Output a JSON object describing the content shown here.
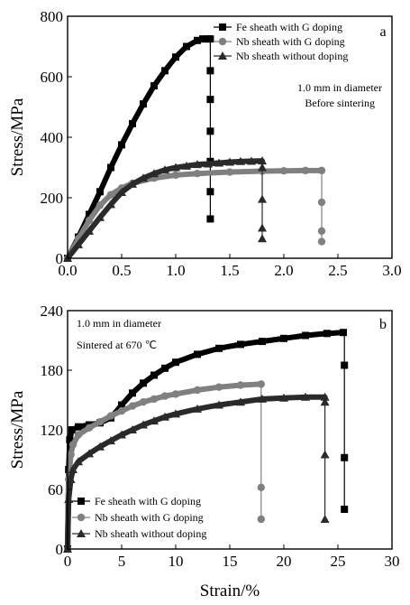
{
  "colors": {
    "Fe sheath with G doping": "#000000",
    "Nb sheath with G doping": "#808080",
    "Nb sheath without doping": "#2a2a2a"
  },
  "chart_data": [
    {
      "type": "line",
      "panel": "a",
      "xlabel": "",
      "ylabel": "Stress/MPa",
      "xlim": [
        0,
        3.0
      ],
      "ylim": [
        0,
        800
      ],
      "xticks": [
        "0.0",
        "0.5",
        "1.0",
        "1.5",
        "2.0",
        "2.5",
        "3.0"
      ],
      "yticks": [
        "0",
        "200",
        "400",
        "600",
        "800"
      ],
      "annotations": [
        "1.0 mm in diameter",
        "Before sintering"
      ],
      "legend_position": "top-right",
      "series": [
        {
          "name": "Fe sheath with G doping",
          "marker": "square",
          "color": "#000000",
          "points": [
            [
              0,
              0
            ],
            [
              0.1,
              70
            ],
            [
              0.2,
              145
            ],
            [
              0.3,
              220
            ],
            [
              0.4,
              300
            ],
            [
              0.5,
              375
            ],
            [
              0.6,
              445
            ],
            [
              0.7,
              510
            ],
            [
              0.8,
              570
            ],
            [
              0.9,
              620
            ],
            [
              1.0,
              665
            ],
            [
              1.1,
              700
            ],
            [
              1.2,
              720
            ],
            [
              1.25,
              725
            ],
            [
              1.3,
              725
            ],
            [
              1.32,
              725
            ]
          ],
          "drop_x": 1.32,
          "drop_points": [
            620,
            525,
            420,
            320,
            220,
            130
          ]
        },
        {
          "name": "Nb sheath with G doping",
          "marker": "circle",
          "color": "#808080",
          "points": [
            [
              0,
              0
            ],
            [
              0.1,
              65
            ],
            [
              0.2,
              125
            ],
            [
              0.3,
              175
            ],
            [
              0.4,
              210
            ],
            [
              0.5,
              232
            ],
            [
              0.6,
              248
            ],
            [
              0.8,
              265
            ],
            [
              1.0,
              275
            ],
            [
              1.2,
              280
            ],
            [
              1.5,
              285
            ],
            [
              1.8,
              288
            ],
            [
              2.0,
              289
            ],
            [
              2.2,
              290
            ],
            [
              2.35,
              290
            ]
          ],
          "drop_x": 2.35,
          "drop_points": [
            185,
            90,
            55
          ]
        },
        {
          "name": "Nb sheath without doping",
          "marker": "triangle",
          "color": "#2a2a2a",
          "points": [
            [
              0,
              0
            ],
            [
              0.1,
              45
            ],
            [
              0.2,
              90
            ],
            [
              0.3,
              135
            ],
            [
              0.4,
              178
            ],
            [
              0.5,
              218
            ],
            [
              0.6,
              245
            ],
            [
              0.7,
              265
            ],
            [
              0.8,
              280
            ],
            [
              0.9,
              292
            ],
            [
              1.0,
              300
            ],
            [
              1.1,
              305
            ],
            [
              1.2,
              310
            ],
            [
              1.3,
              312
            ],
            [
              1.4,
              315
            ],
            [
              1.5,
              318
            ],
            [
              1.6,
              320
            ],
            [
              1.7,
              321
            ],
            [
              1.8,
              322
            ]
          ],
          "drop_x": 1.8,
          "drop_points": [
            300,
            195,
            100,
            65
          ]
        }
      ]
    },
    {
      "type": "line",
      "panel": "b",
      "xlabel": "Strain/%",
      "ylabel": "Stress/MPa",
      "xlim": [
        0,
        30
      ],
      "ylim": [
        0,
        240
      ],
      "xticks": [
        "0",
        "5",
        "10",
        "15",
        "20",
        "25",
        "30"
      ],
      "yticks": [
        "0",
        "60",
        "120",
        "180",
        "240"
      ],
      "annotations": [
        "1.0 mm in diameter",
        "Sintered at 670 ℃"
      ],
      "legend_position": "bottom-left",
      "series": [
        {
          "name": "Fe sheath with G doping",
          "marker": "square",
          "color": "#000000",
          "points": [
            [
              0,
              0
            ],
            [
              0.1,
              80
            ],
            [
              0.2,
              110
            ],
            [
              0.4,
              120
            ],
            [
              1,
              123
            ],
            [
              2,
              125
            ],
            [
              3,
              127
            ],
            [
              4,
              132
            ],
            [
              5,
              145
            ],
            [
              6,
              157
            ],
            [
              7,
              167
            ],
            [
              8,
              175
            ],
            [
              9,
              182
            ],
            [
              10,
              188
            ],
            [
              12,
              196
            ],
            [
              14,
              202
            ],
            [
              16,
              206
            ],
            [
              18,
              209
            ],
            [
              20,
              212
            ],
            [
              22,
              215
            ],
            [
              24,
              217
            ],
            [
              25.5,
              218
            ]
          ],
          "drop_x": 25.6,
          "drop_points": [
            185,
            92,
            40
          ]
        },
        {
          "name": "Nb sheath with G doping",
          "marker": "circle",
          "color": "#808080",
          "points": [
            [
              0,
              0
            ],
            [
              0.1,
              70
            ],
            [
              0.3,
              95
            ],
            [
              0.5,
              105
            ],
            [
              1,
              115
            ],
            [
              2,
              122
            ],
            [
              3,
              128
            ],
            [
              4,
              134
            ],
            [
              5,
              139
            ],
            [
              6,
              144
            ],
            [
              7,
              148
            ],
            [
              8,
              151
            ],
            [
              9,
              154
            ],
            [
              10,
              156
            ],
            [
              12,
              160
            ],
            [
              14,
              163
            ],
            [
              16,
              165
            ],
            [
              17.9,
              166
            ]
          ],
          "drop_x": 17.9,
          "drop_points": [
            62,
            30
          ]
        },
        {
          "name": "Nb sheath without doping",
          "marker": "triangle",
          "color": "#2a2a2a",
          "points": [
            [
              0,
              0
            ],
            [
              0.1,
              50
            ],
            [
              0.3,
              70
            ],
            [
              0.5,
              80
            ],
            [
              1,
              88
            ],
            [
              2,
              96
            ],
            [
              3,
              103
            ],
            [
              4,
              109
            ],
            [
              5,
              115
            ],
            [
              6,
              120
            ],
            [
              7,
              125
            ],
            [
              8,
              129
            ],
            [
              9,
              133
            ],
            [
              10,
              136
            ],
            [
              12,
              141
            ],
            [
              14,
              145
            ],
            [
              16,
              148
            ],
            [
              18,
              151
            ],
            [
              20,
              152
            ],
            [
              22,
              153
            ],
            [
              23.8,
              153
            ]
          ],
          "drop_x": 23.8,
          "drop_points": [
            148,
            95,
            30
          ]
        }
      ]
    }
  ]
}
